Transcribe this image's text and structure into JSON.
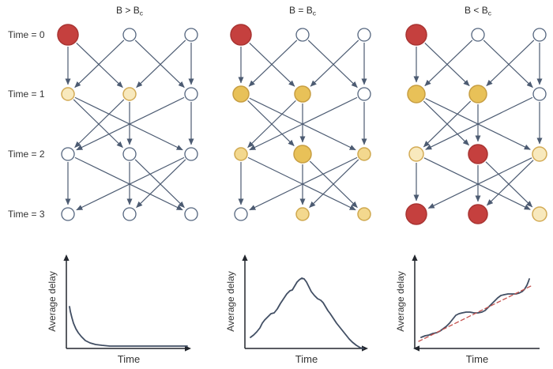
{
  "figure": {
    "row_labels": [
      "Time = 0",
      "Time = 1",
      "Time = 2",
      "Time = 3"
    ],
    "panels": [
      {
        "title_main": "B > B",
        "title_sub": "c",
        "nodes": [
          [
            {
              "c": "red",
              "r": 13
            },
            {
              "c": "white",
              "r": 8
            },
            {
              "c": "white",
              "r": 8
            }
          ],
          [
            {
              "c": "cream",
              "r": 8
            },
            {
              "c": "cream",
              "r": 8
            },
            {
              "c": "white",
              "r": 8
            }
          ],
          [
            {
              "c": "white",
              "r": 8
            },
            {
              "c": "white",
              "r": 8
            },
            {
              "c": "white",
              "r": 8
            }
          ],
          [
            {
              "c": "white",
              "r": 8
            },
            {
              "c": "white",
              "r": 8
            },
            {
              "c": "white",
              "r": 8
            }
          ]
        ]
      },
      {
        "title_main": "B = B",
        "title_sub": "c",
        "nodes": [
          [
            {
              "c": "red",
              "r": 13
            },
            {
              "c": "white",
              "r": 8
            },
            {
              "c": "white",
              "r": 8
            }
          ],
          [
            {
              "c": "gold",
              "r": 10
            },
            {
              "c": "gold",
              "r": 10
            },
            {
              "c": "white",
              "r": 8
            }
          ],
          [
            {
              "c": "palegold",
              "r": 8
            },
            {
              "c": "gold",
              "r": 11
            },
            {
              "c": "palegold",
              "r": 8
            }
          ],
          [
            {
              "c": "white",
              "r": 8
            },
            {
              "c": "palegold",
              "r": 8
            },
            {
              "c": "palegold",
              "r": 8
            }
          ]
        ]
      },
      {
        "title_main": "B < B",
        "title_sub": "c",
        "nodes": [
          [
            {
              "c": "red",
              "r": 13
            },
            {
              "c": "white",
              "r": 8
            },
            {
              "c": "white",
              "r": 8
            }
          ],
          [
            {
              "c": "gold",
              "r": 11
            },
            {
              "c": "gold",
              "r": 11
            },
            {
              "c": "white",
              "r": 8
            }
          ],
          [
            {
              "c": "cream",
              "r": 9
            },
            {
              "c": "red",
              "r": 12
            },
            {
              "c": "cream",
              "r": 9
            }
          ],
          [
            {
              "c": "red",
              "r": 13
            },
            {
              "c": "red",
              "r": 12
            },
            {
              "c": "cream",
              "r": 9
            }
          ]
        ]
      }
    ],
    "edges_by_layer": [
      [
        [
          0,
          0
        ],
        [
          0,
          1
        ],
        [
          1,
          0
        ],
        [
          1,
          2
        ],
        [
          2,
          1
        ],
        [
          2,
          2
        ]
      ],
      [
        [
          0,
          1
        ],
        [
          0,
          2
        ],
        [
          1,
          0
        ],
        [
          1,
          1
        ],
        [
          2,
          0
        ],
        [
          2,
          2
        ]
      ],
      [
        [
          0,
          0
        ],
        [
          0,
          2
        ],
        [
          1,
          1
        ],
        [
          1,
          2
        ],
        [
          2,
          0
        ],
        [
          2,
          1
        ]
      ]
    ],
    "colors": {
      "edge": "#4c5b72",
      "axis": "#23272e",
      "curve": "#414e63",
      "trend": "#c4524e",
      "text": "#333333",
      "title_text": "#2b2b2b",
      "palette": {
        "red": {
          "fill": "#c5403e",
          "stroke": "#a93432"
        },
        "gold": {
          "fill": "#e8c158",
          "stroke": "#c79e42"
        },
        "palegold": {
          "fill": "#f3d88e",
          "stroke": "#cfa84e"
        },
        "cream": {
          "fill": "#f8e9bd",
          "stroke": "#d3ab55"
        },
        "white": {
          "fill": "#ffffff",
          "stroke": "#54657e"
        }
      }
    }
  },
  "chart_data": [
    {
      "type": "line",
      "title": "",
      "xlabel": "Time",
      "ylabel": "Average delay",
      "description": "Delay decays rapidly to a low steady state (subcritical load B > Bc network clears).",
      "axes": "qualitative, no ticks; arrow on y-axis top and x-axis right end",
      "x_range": [
        0,
        158
      ],
      "y_range": [
        0,
        120
      ],
      "series": [
        {
          "name": "average delay",
          "points": [
            [
              4,
              53
            ],
            [
              5,
              47
            ],
            [
              7,
              39
            ],
            [
              9,
              32
            ],
            [
              12,
              25
            ],
            [
              15,
              20
            ],
            [
              19,
              15
            ],
            [
              24,
              10
            ],
            [
              30,
              7
            ],
            [
              37,
              5
            ],
            [
              45,
              4
            ],
            [
              55,
              3
            ],
            [
              70,
              3
            ],
            [
              90,
              3
            ],
            [
              115,
              3
            ],
            [
              135,
              3
            ],
            [
              153,
              3
            ]
          ]
        }
      ]
    },
    {
      "type": "line",
      "title": "",
      "xlabel": "Time",
      "ylabel": "Average delay",
      "description": "Delay rises with fluctuations to a peak then decays back to zero (critical B = Bc).",
      "axes": "qualitative, no ticks; arrow on y-axis top and x-axis right end",
      "x_range": [
        0,
        156
      ],
      "y_range": [
        0,
        120
      ],
      "series": [
        {
          "name": "average delay",
          "points": [
            [
              7,
              14
            ],
            [
              11,
              17
            ],
            [
              15,
              21
            ],
            [
              19,
              26
            ],
            [
              22,
              32
            ],
            [
              25,
              36
            ],
            [
              29,
              40
            ],
            [
              33,
              44
            ],
            [
              37,
              45
            ],
            [
              41,
              50
            ],
            [
              45,
              57
            ],
            [
              49,
              63
            ],
            [
              53,
              69
            ],
            [
              57,
              73
            ],
            [
              60,
              74
            ],
            [
              63,
              79
            ],
            [
              66,
              84
            ],
            [
              69,
              87
            ],
            [
              72,
              89
            ],
            [
              75,
              88
            ],
            [
              78,
              84
            ],
            [
              81,
              78
            ],
            [
              84,
              72
            ],
            [
              88,
              67
            ],
            [
              92,
              63
            ],
            [
              96,
              61
            ],
            [
              99,
              58
            ],
            [
              102,
              53
            ],
            [
              105,
              48
            ],
            [
              108,
              44
            ],
            [
              112,
              38
            ],
            [
              116,
              32
            ],
            [
              120,
              27
            ],
            [
              124,
              22
            ],
            [
              128,
              17
            ],
            [
              132,
              12
            ],
            [
              136,
              8
            ],
            [
              141,
              4
            ],
            [
              146,
              1
            ],
            [
              150,
              0
            ]
          ]
        }
      ]
    },
    {
      "type": "line",
      "title": "",
      "xlabel": "Time",
      "ylabel": "Average delay",
      "description": "Delay grows without bound in wavy steps; red dashed straight line shows linear growth trend (supercritical B < Bc).",
      "axes": "qualitative, no ticks; arrow on y-axis top; arrowhead at left end of x-axis",
      "x_range": [
        0,
        158
      ],
      "y_range": [
        0,
        120
      ],
      "series": [
        {
          "name": "average delay",
          "points": [
            [
              8,
              14
            ],
            [
              13,
              16
            ],
            [
              18,
              17
            ],
            [
              23,
              19
            ],
            [
              28,
              20
            ],
            [
              32,
              22
            ],
            [
              36,
              25
            ],
            [
              40,
              28
            ],
            [
              44,
              32
            ],
            [
              48,
              37
            ],
            [
              52,
              42
            ],
            [
              56,
              44
            ],
            [
              60,
              45
            ],
            [
              65,
              46
            ],
            [
              70,
              46
            ],
            [
              75,
              45
            ],
            [
              80,
              45
            ],
            [
              85,
              46
            ],
            [
              89,
              48
            ],
            [
              93,
              52
            ],
            [
              97,
              56
            ],
            [
              101,
              60
            ],
            [
              105,
              64
            ],
            [
              109,
              67
            ],
            [
              113,
              68
            ],
            [
              118,
              69
            ],
            [
              123,
              69
            ],
            [
              128,
              69
            ],
            [
              132,
              70
            ],
            [
              136,
              72
            ],
            [
              139,
              75
            ],
            [
              142,
              80
            ],
            [
              144,
              85
            ],
            [
              145,
              88
            ]
          ]
        },
        {
          "name": "linear trend",
          "style": "dashed-red",
          "points": [
            [
              5,
              9
            ],
            [
              147,
              79
            ]
          ]
        }
      ]
    }
  ]
}
